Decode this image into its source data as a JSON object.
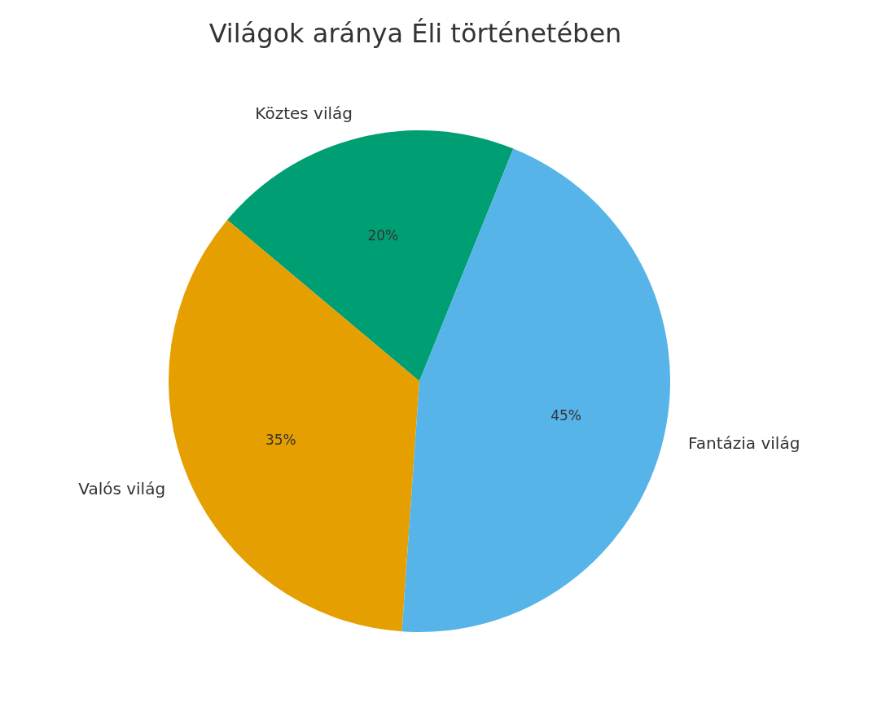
{
  "chart_data": {
    "type": "pie",
    "title": "Világok aránya Éli történetében",
    "categories": [
      "Köztes világ",
      "Valós világ",
      "Fantázia világ"
    ],
    "values": [
      20,
      35,
      45
    ],
    "value_labels": [
      "20%",
      "35%",
      "45%"
    ],
    "colors": [
      "#009e73",
      "#e69f00",
      "#56b4e9"
    ]
  }
}
